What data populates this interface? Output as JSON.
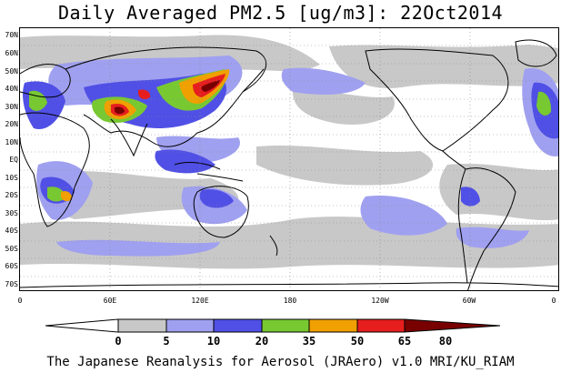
{
  "title": "Daily Averaged PM2.5 [ug/m3]: 22Oct2014",
  "credit": "The Japanese Reanalysis for Aerosol (JRAero) v1.0 MRI/KU_RIAM",
  "lat_labels": [
    "70N",
    "60N",
    "50N",
    "40N",
    "30N",
    "20N",
    "10N",
    "EQ",
    "10S",
    "20S",
    "30S",
    "40S",
    "50S",
    "60S",
    "70S"
  ],
  "lon_labels": [
    "0",
    "60E",
    "120E",
    "180",
    "120W",
    "60W",
    "0"
  ],
  "colorbar": {
    "thresholds": [
      "0",
      "5",
      "10",
      "20",
      "35",
      "50",
      "65",
      "80"
    ],
    "colors": [
      "#ffffff",
      "#c8c8c8",
      "#a0a0f0",
      "#5050e6",
      "#78c832",
      "#f0a000",
      "#e61e1e",
      "#780000"
    ]
  }
}
